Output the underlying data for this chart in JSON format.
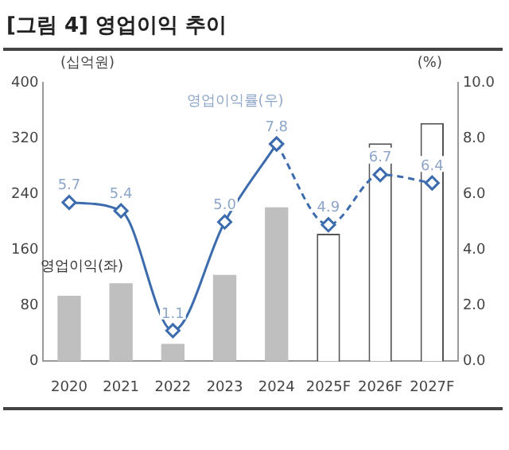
{
  "chart_data": {
    "type": "bar",
    "title": "[그림 4] 영업이익 추이",
    "categories": [
      "2020",
      "2021",
      "2022",
      "2023",
      "2024",
      "2025F",
      "2026F",
      "2027F"
    ],
    "series": [
      {
        "name": "영업이익(좌)",
        "color": "#bfbfbf",
        "values": [
          94,
          112,
          25,
          124,
          221,
          null,
          null,
          null
        ]
      },
      {
        "color": "#ffffff",
        "line_style": "dashed",
        "values": [
          null,
          null,
          null,
          null,
          null,
          183,
          313,
          342
        ]
      },
      {
        "type": "line",
        "axis": "y2",
        "name": "영업이익률(우)",
        "color": "#3d6cae",
        "line_style": "solid",
        "values": [
          5.7,
          5.4,
          1.1,
          5.0,
          7.8,
          null,
          null,
          null
        ],
        "value_labels": [
          "5.7",
          "5.4",
          "1.1",
          "5.0",
          "7.8",
          null,
          null,
          null
        ]
      },
      {
        "type": "line",
        "axis": "y2",
        "color": "#3d6cae",
        "line_style": "dashed",
        "values": [
          null,
          null,
          null,
          null,
          7.8,
          4.9,
          6.7,
          6.4
        ],
        "value_labels": [
          null,
          null,
          null,
          null,
          null,
          "4.9",
          "6.7",
          "6.4"
        ]
      }
    ],
    "ylabel": "(십억원)",
    "y2label": "(%)",
    "ylim": [
      0,
      400
    ],
    "yticks": [
      0,
      80,
      160,
      240,
      320,
      400
    ],
    "y2lim": [
      0,
      10
    ],
    "y2ticks": [
      {
        "value": 0,
        "label": "0.0"
      },
      {
        "value": 2,
        "label": "2.0"
      },
      {
        "value": 4,
        "label": "4.0"
      },
      {
        "value": 6,
        "label": "6.0"
      },
      {
        "value": 8,
        "label": "8.0"
      },
      {
        "value": 10,
        "label": "10.0"
      }
    ],
    "marker": "diamond",
    "grid": false,
    "legend": false
  }
}
